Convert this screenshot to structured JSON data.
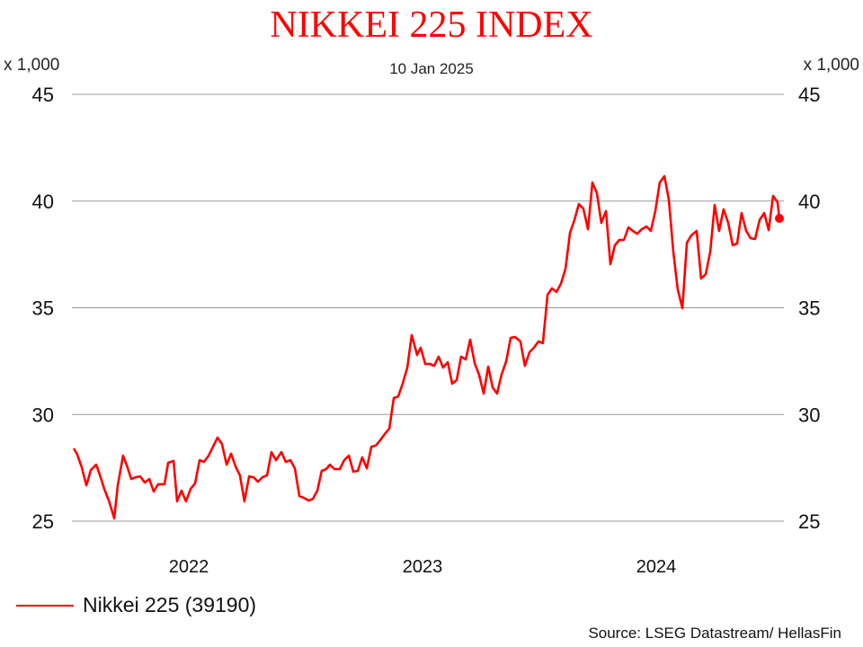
{
  "chart_data": {
    "type": "line",
    "title": "NIKKEI 225 INDEX",
    "subtitle": "10 Jan 2025",
    "ylabel_left": "x 1,000",
    "ylabel_right": "x 1,000",
    "ylim": [
      25,
      45
    ],
    "yticks": [
      25,
      30,
      35,
      40,
      45
    ],
    "xlim": [
      2022,
      2025.03
    ],
    "xticks": [
      {
        "label": "2022",
        "value": 2022.5
      },
      {
        "label": "2023",
        "value": 2023.5
      },
      {
        "label": "2024",
        "value": 2024.5
      }
    ],
    "grid": "horizontal",
    "legend_position": "bottom-left",
    "line_color": "#ff0000",
    "series": [
      {
        "name": "Nikkei 225 (39190)",
        "x": [
          2022.008,
          2022.023,
          2022.042,
          2022.062,
          2022.081,
          2022.104,
          2022.119,
          2022.138,
          2022.158,
          2022.181,
          2022.196,
          2022.219,
          2022.235,
          2022.254,
          2022.273,
          2022.292,
          2022.312,
          2022.331,
          2022.35,
          2022.369,
          2022.396,
          2022.412,
          2022.435,
          2022.45,
          2022.469,
          2022.488,
          2022.508,
          2022.527,
          2022.546,
          2022.565,
          2022.585,
          2022.604,
          2022.623,
          2022.642,
          2022.662,
          2022.681,
          2022.7,
          2022.719,
          2022.738,
          2022.758,
          2022.777,
          2022.796,
          2022.815,
          2022.835,
          2022.854,
          2022.873,
          2022.896,
          2022.915,
          2022.935,
          2022.954,
          2022.973,
          2022.992,
          2023.012,
          2023.031,
          2023.05,
          2023.069,
          2023.088,
          2023.104,
          2023.123,
          2023.146,
          2023.165,
          2023.185,
          2023.204,
          2023.223,
          2023.242,
          2023.262,
          2023.281,
          2023.3,
          2023.319,
          2023.338,
          2023.358,
          2023.377,
          2023.396,
          2023.415,
          2023.435,
          2023.454,
          2023.477,
          2023.492,
          2023.512,
          2023.531,
          2023.55,
          2023.569,
          2023.588,
          2023.608,
          2023.627,
          2023.646,
          2023.665,
          2023.685,
          2023.704,
          2023.723,
          2023.742,
          2023.762,
          2023.781,
          2023.8,
          2023.819,
          2023.838,
          2023.858,
          2023.877,
          2023.896,
          2023.919,
          2023.938,
          2023.958,
          2023.977,
          2023.996,
          2024.015,
          2024.035,
          2024.054,
          2024.073,
          2024.092,
          2024.112,
          2024.131,
          2024.15,
          2024.169,
          2024.188,
          2024.208,
          2024.227,
          2024.246,
          2024.265,
          2024.285,
          2024.304,
          2024.323,
          2024.342,
          2024.362,
          2024.381,
          2024.4,
          2024.419,
          2024.438,
          2024.458,
          2024.477,
          2024.496,
          2024.515,
          2024.535,
          2024.554,
          2024.573,
          2024.592,
          2024.612,
          2024.631,
          2024.65,
          2024.673,
          2024.692,
          2024.712,
          2024.731,
          2024.75,
          2024.769,
          2024.788,
          2024.808,
          2024.827,
          2024.846,
          2024.865,
          2024.885,
          2024.904,
          2024.923,
          2024.942,
          2024.962,
          2024.981,
          2025.0,
          2025.019,
          2025.027
        ],
        "y": [
          28.41,
          28.12,
          27.53,
          26.68,
          27.4,
          27.65,
          27.19,
          26.52,
          25.97,
          25.13,
          26.68,
          28.07,
          27.61,
          26.98,
          27.06,
          27.1,
          26.81,
          26.98,
          26.39,
          26.73,
          26.73,
          27.74,
          27.82,
          25.93,
          26.43,
          25.93,
          26.52,
          26.77,
          27.86,
          27.78,
          28.07,
          28.49,
          28.92,
          28.62,
          27.65,
          28.16,
          27.57,
          27.15,
          25.93,
          27.1,
          27.06,
          26.85,
          27.06,
          27.15,
          28.24,
          27.86,
          28.24,
          27.78,
          27.86,
          27.48,
          26.18,
          26.1,
          25.97,
          26.05,
          26.43,
          27.36,
          27.44,
          27.65,
          27.44,
          27.44,
          27.86,
          28.07,
          27.32,
          27.36,
          27.99,
          27.48,
          28.49,
          28.54,
          28.79,
          29.08,
          29.34,
          30.77,
          30.85,
          31.44,
          32.2,
          33.72,
          32.79,
          33.13,
          32.37,
          32.37,
          32.28,
          32.71,
          32.2,
          32.45,
          31.44,
          31.61,
          32.71,
          32.58,
          33.51,
          32.41,
          31.86,
          30.98,
          32.24,
          31.27,
          30.98,
          31.86,
          32.49,
          33.59,
          33.63,
          33.42,
          32.28,
          32.92,
          33.13,
          33.42,
          33.34,
          35.61,
          35.91,
          35.74,
          36.12,
          36.83,
          38.52,
          39.11,
          39.86,
          39.65,
          38.68,
          40.87,
          40.37,
          38.98,
          39.53,
          37.04,
          37.93,
          38.18,
          38.18,
          38.77,
          38.6,
          38.47,
          38.68,
          38.81,
          38.6,
          39.53,
          40.87,
          41.17,
          40.07,
          37.63,
          35.86,
          34.98,
          38.05,
          38.39,
          38.6,
          36.37,
          36.58,
          37.63,
          39.82,
          38.6,
          39.61,
          38.98,
          37.93,
          38.01,
          39.44,
          38.6,
          38.26,
          38.22,
          39.11,
          39.44,
          38.64,
          40.24,
          39.95,
          39.19
        ]
      }
    ]
  },
  "source": "Source: LSEG Datastream/ HellasFin"
}
